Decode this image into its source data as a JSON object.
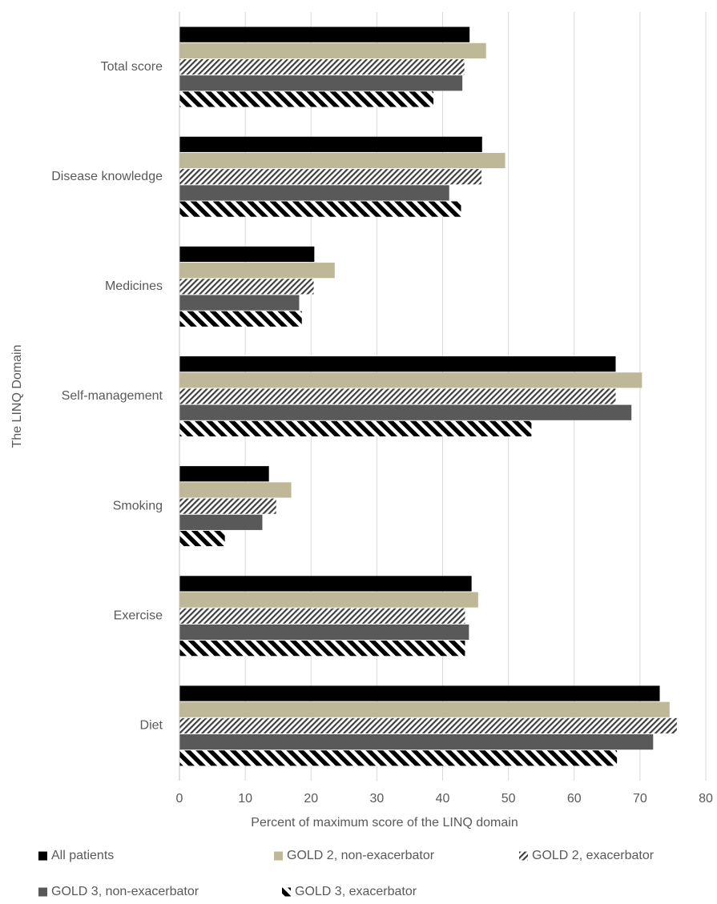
{
  "chart_data": {
    "type": "barh",
    "categories": [
      "Total score",
      "Disease knowledge",
      "Medicines",
      "Self-management",
      "Smoking",
      "Exercise",
      "Diet"
    ],
    "series": [
      {
        "name": "All patients",
        "color": "#000000",
        "pattern": "solid",
        "values": [
          44.1,
          46.0,
          20.5,
          66.3,
          13.6,
          44.4,
          73.0
        ]
      },
      {
        "name": "GOLD 2, non-exacerbator",
        "color": "#bfb898",
        "pattern": "solid",
        "values": [
          46.6,
          49.5,
          23.6,
          70.3,
          17.0,
          45.4,
          74.5
        ]
      },
      {
        "name": "GOLD 2, exacerbator",
        "color": "#404040",
        "pattern": "fine-forward",
        "values": [
          43.3,
          45.9,
          20.4,
          66.3,
          14.7,
          43.4,
          75.6
        ]
      },
      {
        "name": "GOLD 3, non-exacerbator",
        "color": "#595959",
        "pattern": "solid",
        "values": [
          43.0,
          41.0,
          18.2,
          68.7,
          12.6,
          44.0,
          72.0
        ]
      },
      {
        "name": "GOLD 3, exacerbator",
        "color": "#000000",
        "pattern": "thick-backward",
        "values": [
          38.6,
          42.8,
          18.6,
          53.5,
          6.9,
          43.4,
          66.5
        ]
      }
    ],
    "xlabel": "Percent of maximum score of the LINQ domain",
    "ylabel": "The LINQ Domain",
    "xlim": [
      0,
      80
    ],
    "xticks": [
      0,
      10,
      20,
      30,
      40,
      50,
      60,
      70,
      80
    ],
    "grid": true,
    "legend": "bottom"
  }
}
